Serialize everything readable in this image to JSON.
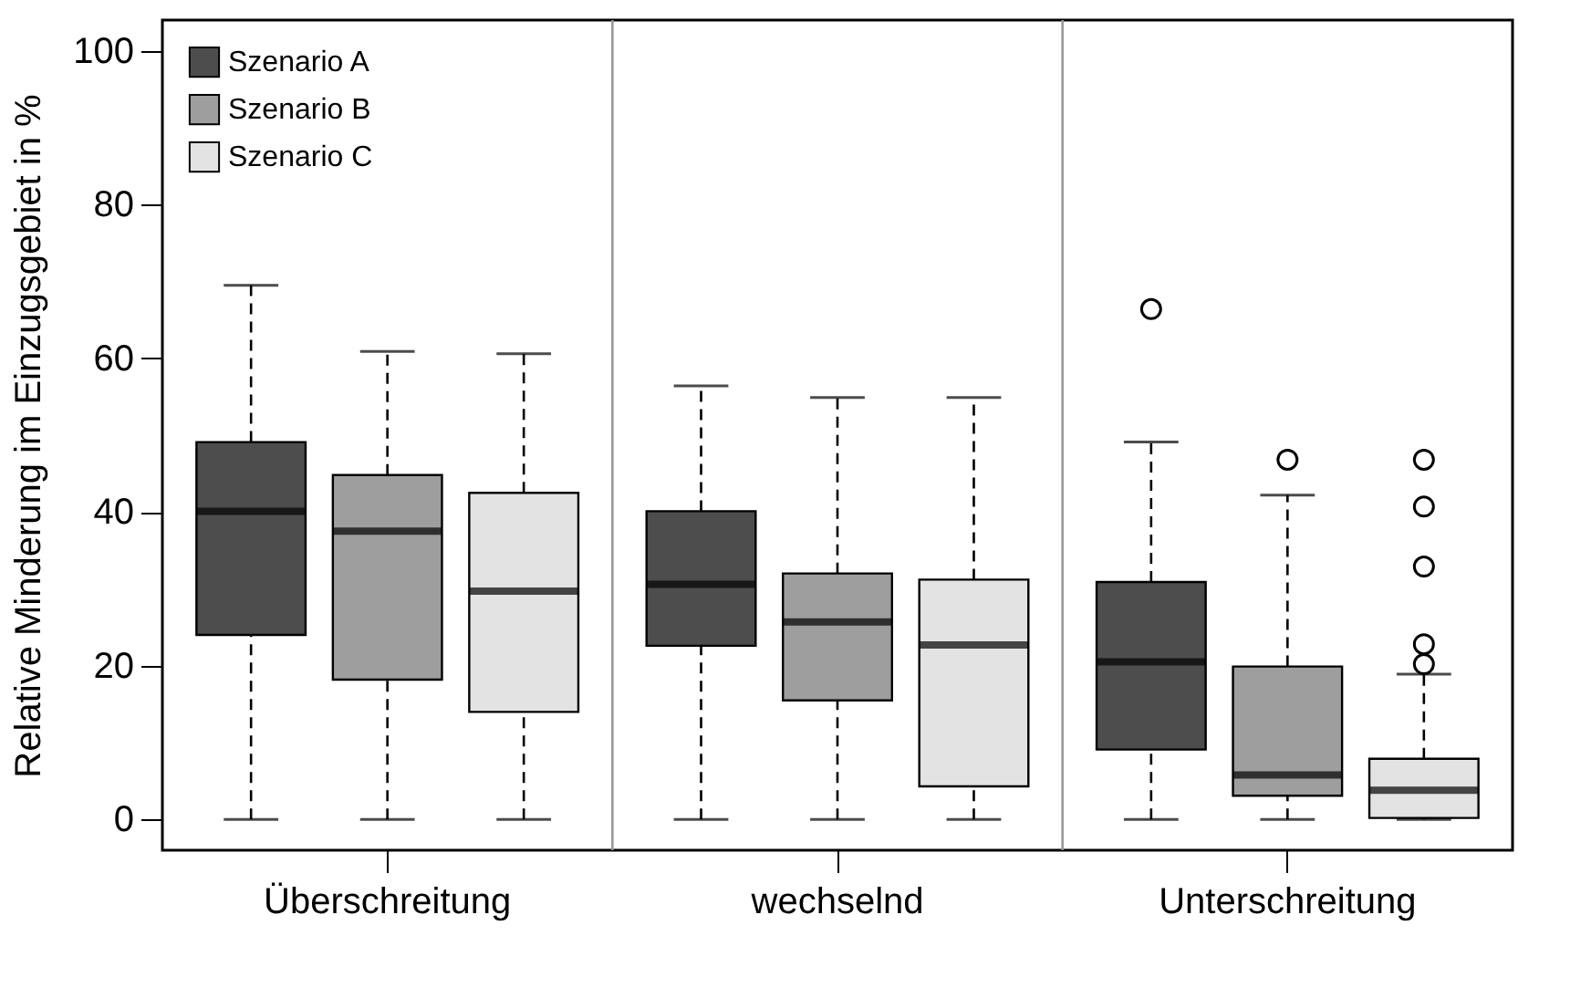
{
  "chart_data": {
    "type": "box",
    "categories": [
      "Überschreitung",
      "wechselnd",
      "Unterschreitung"
    ],
    "ylabel": "Relative Minderung im Einzugsgebiet in %",
    "ylim": [
      -4,
      104
    ],
    "yticks": [
      0,
      20,
      40,
      60,
      80,
      100
    ],
    "legend": "top left",
    "grid": false,
    "series": [
      {
        "name": "Szenario A",
        "color": "#4d4d4d",
        "boxes": [
          {
            "low": 0,
            "q1": 24.0,
            "median": 40.1,
            "q3": 49.1,
            "high": 69.5
          },
          {
            "low": 0,
            "q1": 22.6,
            "median": 30.6,
            "q3": 40.1,
            "high": 56.4
          },
          {
            "low": 0,
            "q1": 9.1,
            "median": 20.5,
            "q3": 30.9,
            "high": 49.1,
            "outliers": [
              66.4
            ]
          }
        ]
      },
      {
        "name": "Szenario B",
        "color": "#9e9e9e",
        "boxes": [
          {
            "low": 0,
            "q1": 18.2,
            "median": 37.5,
            "q3": 44.8,
            "high": 60.9
          },
          {
            "low": 0,
            "q1": 15.5,
            "median": 25.7,
            "q3": 32.0,
            "high": 54.9
          },
          {
            "low": 0,
            "q1": 3.1,
            "median": 5.8,
            "q3": 19.9,
            "high": 42.2,
            "outliers": [
              46.8
            ]
          }
        ]
      },
      {
        "name": "Szenario C",
        "color": "#e3e3e3",
        "boxes": [
          {
            "low": 0,
            "q1": 14.0,
            "median": 29.7,
            "q3": 42.5,
            "high": 60.6
          },
          {
            "low": 0,
            "q1": 4.3,
            "median": 22.7,
            "q3": 31.2,
            "high": 54.9
          },
          {
            "low": 0,
            "q1": 0.2,
            "median": 3.8,
            "q3": 7.9,
            "high": 18.9,
            "outliers": [
              46.8,
              40.7,
              32.9,
              22.8,
              20.2
            ]
          }
        ]
      }
    ]
  }
}
